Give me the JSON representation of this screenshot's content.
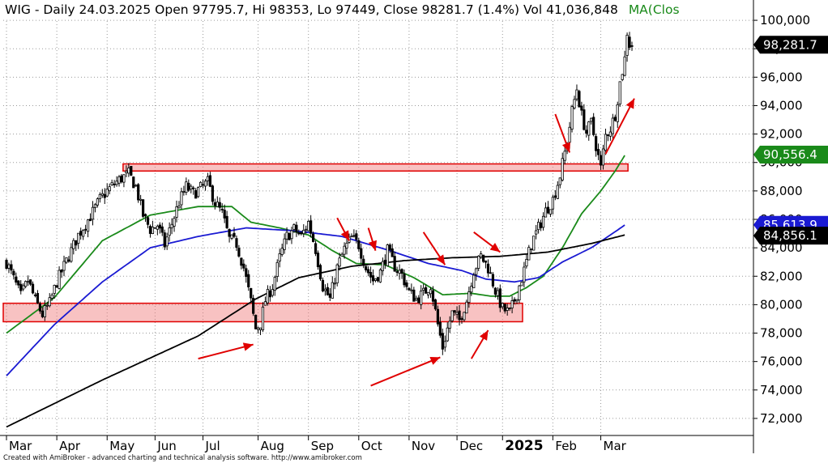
{
  "header": {
    "text": "WIG - Daily 24.03.2025 Open 97795.7, Hi 98353, Lo 97449, Close 98281.7 (1.4%) Vol 41,036,848",
    "ma_text": "MA(Clos",
    "ma_color": "#1a8a1a"
  },
  "footer": {
    "credit": "Created with AmiBroker - advanced charting and technical analysis software. http://www.amibroker.com"
  },
  "chart_data": {
    "type": "candlestick",
    "ylim": [
      70800,
      101200
    ],
    "y_ticks": [
      {
        "value": 72000,
        "label": "72,000"
      },
      {
        "value": 74000,
        "label": "74,000"
      },
      {
        "value": 76000,
        "label": "76,000"
      },
      {
        "value": 78000,
        "label": "78,000"
      },
      {
        "value": 80000,
        "label": "80,000"
      },
      {
        "value": 82000,
        "label": "82,000"
      },
      {
        "value": 84000,
        "label": "84,000"
      },
      {
        "value": 86000,
        "label": "86,000"
      },
      {
        "value": 88000,
        "label": "88,000"
      },
      {
        "value": 90000,
        "label": "90,000"
      },
      {
        "value": 92000,
        "label": "92,000"
      },
      {
        "value": 94000,
        "label": "94,000"
      },
      {
        "value": 96000,
        "label": "96,000"
      },
      {
        "value": 98000,
        "label": "98,000"
      },
      {
        "value": 100000,
        "label": "100,000"
      }
    ],
    "x_ticks": [
      {
        "label": "Mar",
        "bar": 0
      },
      {
        "label": "Apr",
        "bar": 21
      },
      {
        "label": "May",
        "bar": 42
      },
      {
        "label": "Jun",
        "bar": 62
      },
      {
        "label": "Jul",
        "bar": 82
      },
      {
        "label": "Aug",
        "bar": 105
      },
      {
        "label": "Sep",
        "bar": 126
      },
      {
        "label": "Oct",
        "bar": 147
      },
      {
        "label": "Nov",
        "bar": 168
      },
      {
        "label": "Dec",
        "bar": 188
      },
      {
        "label": "2025",
        "bar": 207,
        "bold": true
      },
      {
        "label": "Feb",
        "bar": 228
      },
      {
        "label": "Mar",
        "bar": 248
      }
    ],
    "price_path": [
      [
        0,
        83000
      ],
      [
        3,
        81800
      ],
      [
        6,
        80600
      ],
      [
        9,
        81700
      ],
      [
        12,
        80300
      ],
      [
        15,
        79300
      ],
      [
        18,
        80100
      ],
      [
        21,
        81600
      ],
      [
        24,
        82700
      ],
      [
        27,
        83800
      ],
      [
        30,
        84900
      ],
      [
        33,
        85700
      ],
      [
        36,
        86500
      ],
      [
        39,
        87400
      ],
      [
        42,
        88000
      ],
      [
        45,
        88500
      ],
      [
        48,
        88900
      ],
      [
        51,
        89200
      ],
      [
        54,
        88300
      ],
      [
        57,
        86300
      ],
      [
        60,
        85300
      ],
      [
        63,
        85600
      ],
      [
        66,
        84200
      ],
      [
        69,
        85700
      ],
      [
        72,
        87200
      ],
      [
        75,
        88300
      ],
      [
        78,
        87800
      ],
      [
        81,
        88200
      ],
      [
        84,
        88600
      ],
      [
        87,
        87200
      ],
      [
        90,
        86400
      ],
      [
        93,
        84600
      ],
      [
        96,
        84300
      ],
      [
        99,
        82600
      ],
      [
        102,
        80200
      ],
      [
        104,
        78300
      ],
      [
        106,
        78700
      ],
      [
        108,
        80300
      ],
      [
        111,
        81300
      ],
      [
        114,
        83300
      ],
      [
        117,
        84800
      ],
      [
        120,
        85300
      ],
      [
        123,
        84800
      ],
      [
        126,
        85800
      ],
      [
        129,
        83900
      ],
      [
        132,
        81300
      ],
      [
        135,
        80400
      ],
      [
        138,
        82600
      ],
      [
        141,
        83900
      ],
      [
        144,
        84700
      ],
      [
        147,
        84200
      ],
      [
        150,
        82600
      ],
      [
        153,
        81700
      ],
      [
        156,
        82300
      ],
      [
        159,
        83800
      ],
      [
        162,
        82700
      ],
      [
        165,
        82100
      ],
      [
        168,
        80900
      ],
      [
        171,
        80400
      ],
      [
        174,
        80800
      ],
      [
        177,
        81400
      ],
      [
        180,
        78600
      ],
      [
        182,
        77000
      ],
      [
        184,
        78300
      ],
      [
        186,
        79400
      ],
      [
        189,
        78900
      ],
      [
        192,
        80300
      ],
      [
        195,
        82400
      ],
      [
        198,
        83400
      ],
      [
        201,
        82600
      ],
      [
        204,
        81000
      ],
      [
        207,
        79700
      ],
      [
        210,
        79400
      ],
      [
        213,
        80800
      ],
      [
        216,
        82400
      ],
      [
        219,
        84300
      ],
      [
        222,
        85400
      ],
      [
        225,
        86600
      ],
      [
        228,
        87400
      ],
      [
        231,
        89100
      ],
      [
        234,
        91500
      ],
      [
        236,
        93600
      ],
      [
        238,
        95200
      ],
      [
        240,
        93300
      ],
      [
        242,
        92100
      ],
      [
        244,
        92800
      ],
      [
        246,
        91200
      ],
      [
        248,
        89600
      ],
      [
        250,
        91900
      ],
      [
        252,
        92400
      ],
      [
        254,
        93400
      ],
      [
        256,
        95600
      ],
      [
        258,
        97300
      ],
      [
        259,
        99200
      ],
      [
        260,
        98300
      ],
      [
        261,
        98282
      ]
    ],
    "candle_count": 262,
    "series": [
      {
        "name": "MA green",
        "color": "#1a8a1a",
        "last": 90556.4,
        "last_label": "90,556.4",
        "points": [
          [
            0,
            78000
          ],
          [
            20,
            80500
          ],
          [
            40,
            84500
          ],
          [
            60,
            86300
          ],
          [
            80,
            86900
          ],
          [
            94,
            86900
          ],
          [
            102,
            85800
          ],
          [
            114,
            85400
          ],
          [
            126,
            84900
          ],
          [
            136,
            83800
          ],
          [
            146,
            82900
          ],
          [
            158,
            82800
          ],
          [
            170,
            81900
          ],
          [
            182,
            80700
          ],
          [
            194,
            80800
          ],
          [
            202,
            80600
          ],
          [
            210,
            80600
          ],
          [
            217,
            81200
          ],
          [
            224,
            82000
          ],
          [
            232,
            84000
          ],
          [
            240,
            86400
          ],
          [
            248,
            88000
          ],
          [
            254,
            89400
          ],
          [
            258,
            90500
          ]
        ]
      },
      {
        "name": "MA blue",
        "color": "#1a1ad2",
        "last": 85613.9,
        "last_label": "85,613.9",
        "points": [
          [
            0,
            75000
          ],
          [
            20,
            78600
          ],
          [
            40,
            81600
          ],
          [
            60,
            84000
          ],
          [
            80,
            84800
          ],
          [
            100,
            85400
          ],
          [
            120,
            85200
          ],
          [
            140,
            84800
          ],
          [
            160,
            83800
          ],
          [
            176,
            82900
          ],
          [
            190,
            82400
          ],
          [
            200,
            81800
          ],
          [
            212,
            81600
          ],
          [
            222,
            81900
          ],
          [
            232,
            83000
          ],
          [
            244,
            84000
          ],
          [
            252,
            84900
          ],
          [
            258,
            85600
          ]
        ]
      },
      {
        "name": "MA black",
        "color": "#000000",
        "last": 84856.1,
        "last_label": "84,856.1",
        "points": [
          [
            0,
            71400
          ],
          [
            40,
            74700
          ],
          [
            80,
            77800
          ],
          [
            104,
            80400
          ],
          [
            122,
            81900
          ],
          [
            144,
            82700
          ],
          [
            166,
            83100
          ],
          [
            186,
            83300
          ],
          [
            206,
            83400
          ],
          [
            226,
            83700
          ],
          [
            244,
            84300
          ],
          [
            258,
            84900
          ]
        ]
      }
    ],
    "last_close": {
      "value": 98281.7,
      "label": "98,281.7"
    },
    "zones": [
      {
        "name": "upper-resistance",
        "from_bar": 50,
        "to_bar": 258,
        "low": 89400,
        "high": 89900
      },
      {
        "name": "lower-support",
        "from_bar": 0,
        "to_bar": 214,
        "low": 78800,
        "high": 80100
      }
    ],
    "arrows": [
      {
        "x1": 80,
        "y1": 76200,
        "x2": 103,
        "y2": 77200
      },
      {
        "x1": 152,
        "y1": 74300,
        "x2": 181,
        "y2": 76300
      },
      {
        "x1": 194,
        "y1": 76200,
        "x2": 201,
        "y2": 78200
      },
      {
        "x1": 138,
        "y1": 86100,
        "x2": 143,
        "y2": 84500
      },
      {
        "x1": 151,
        "y1": 85400,
        "x2": 154,
        "y2": 83800
      },
      {
        "x1": 174,
        "y1": 85100,
        "x2": 183,
        "y2": 82800
      },
      {
        "x1": 195,
        "y1": 85100,
        "x2": 206,
        "y2": 83700
      },
      {
        "x1": 229,
        "y1": 93400,
        "x2": 235,
        "y2": 90700
      },
      {
        "x1": 250,
        "y1": 90600,
        "x2": 262,
        "y2": 94500
      }
    ]
  }
}
